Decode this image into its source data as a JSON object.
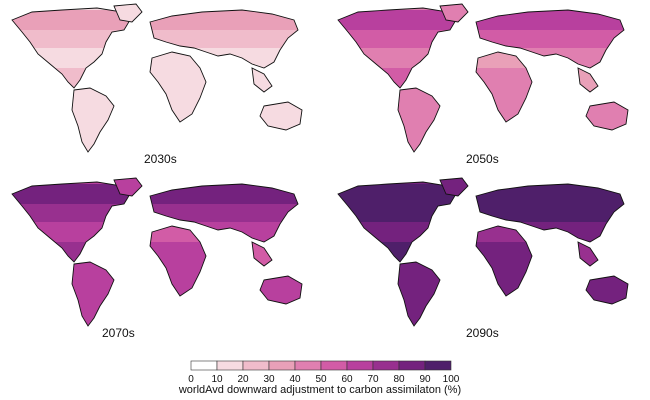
{
  "panels": [
    {
      "label": "2030s",
      "level": 1
    },
    {
      "label": "2050s",
      "level": 4
    },
    {
      "label": "2070s",
      "level": 6
    },
    {
      "label": "2090s",
      "level": 8
    }
  ],
  "legend": {
    "title": "worldAvd downward adjustment to carbon assimilaton (%)",
    "ticks": [
      "0",
      "10",
      "20",
      "30",
      "40",
      "50",
      "60",
      "70",
      "80",
      "90",
      "100"
    ],
    "colors": [
      "#ffffff",
      "#f6dbe1",
      "#f0bccb",
      "#e9a0b8",
      "#e07fb0",
      "#d25ca6",
      "#b8409e",
      "#98308f",
      "#74227e",
      "#4f1f6a"
    ]
  }
}
